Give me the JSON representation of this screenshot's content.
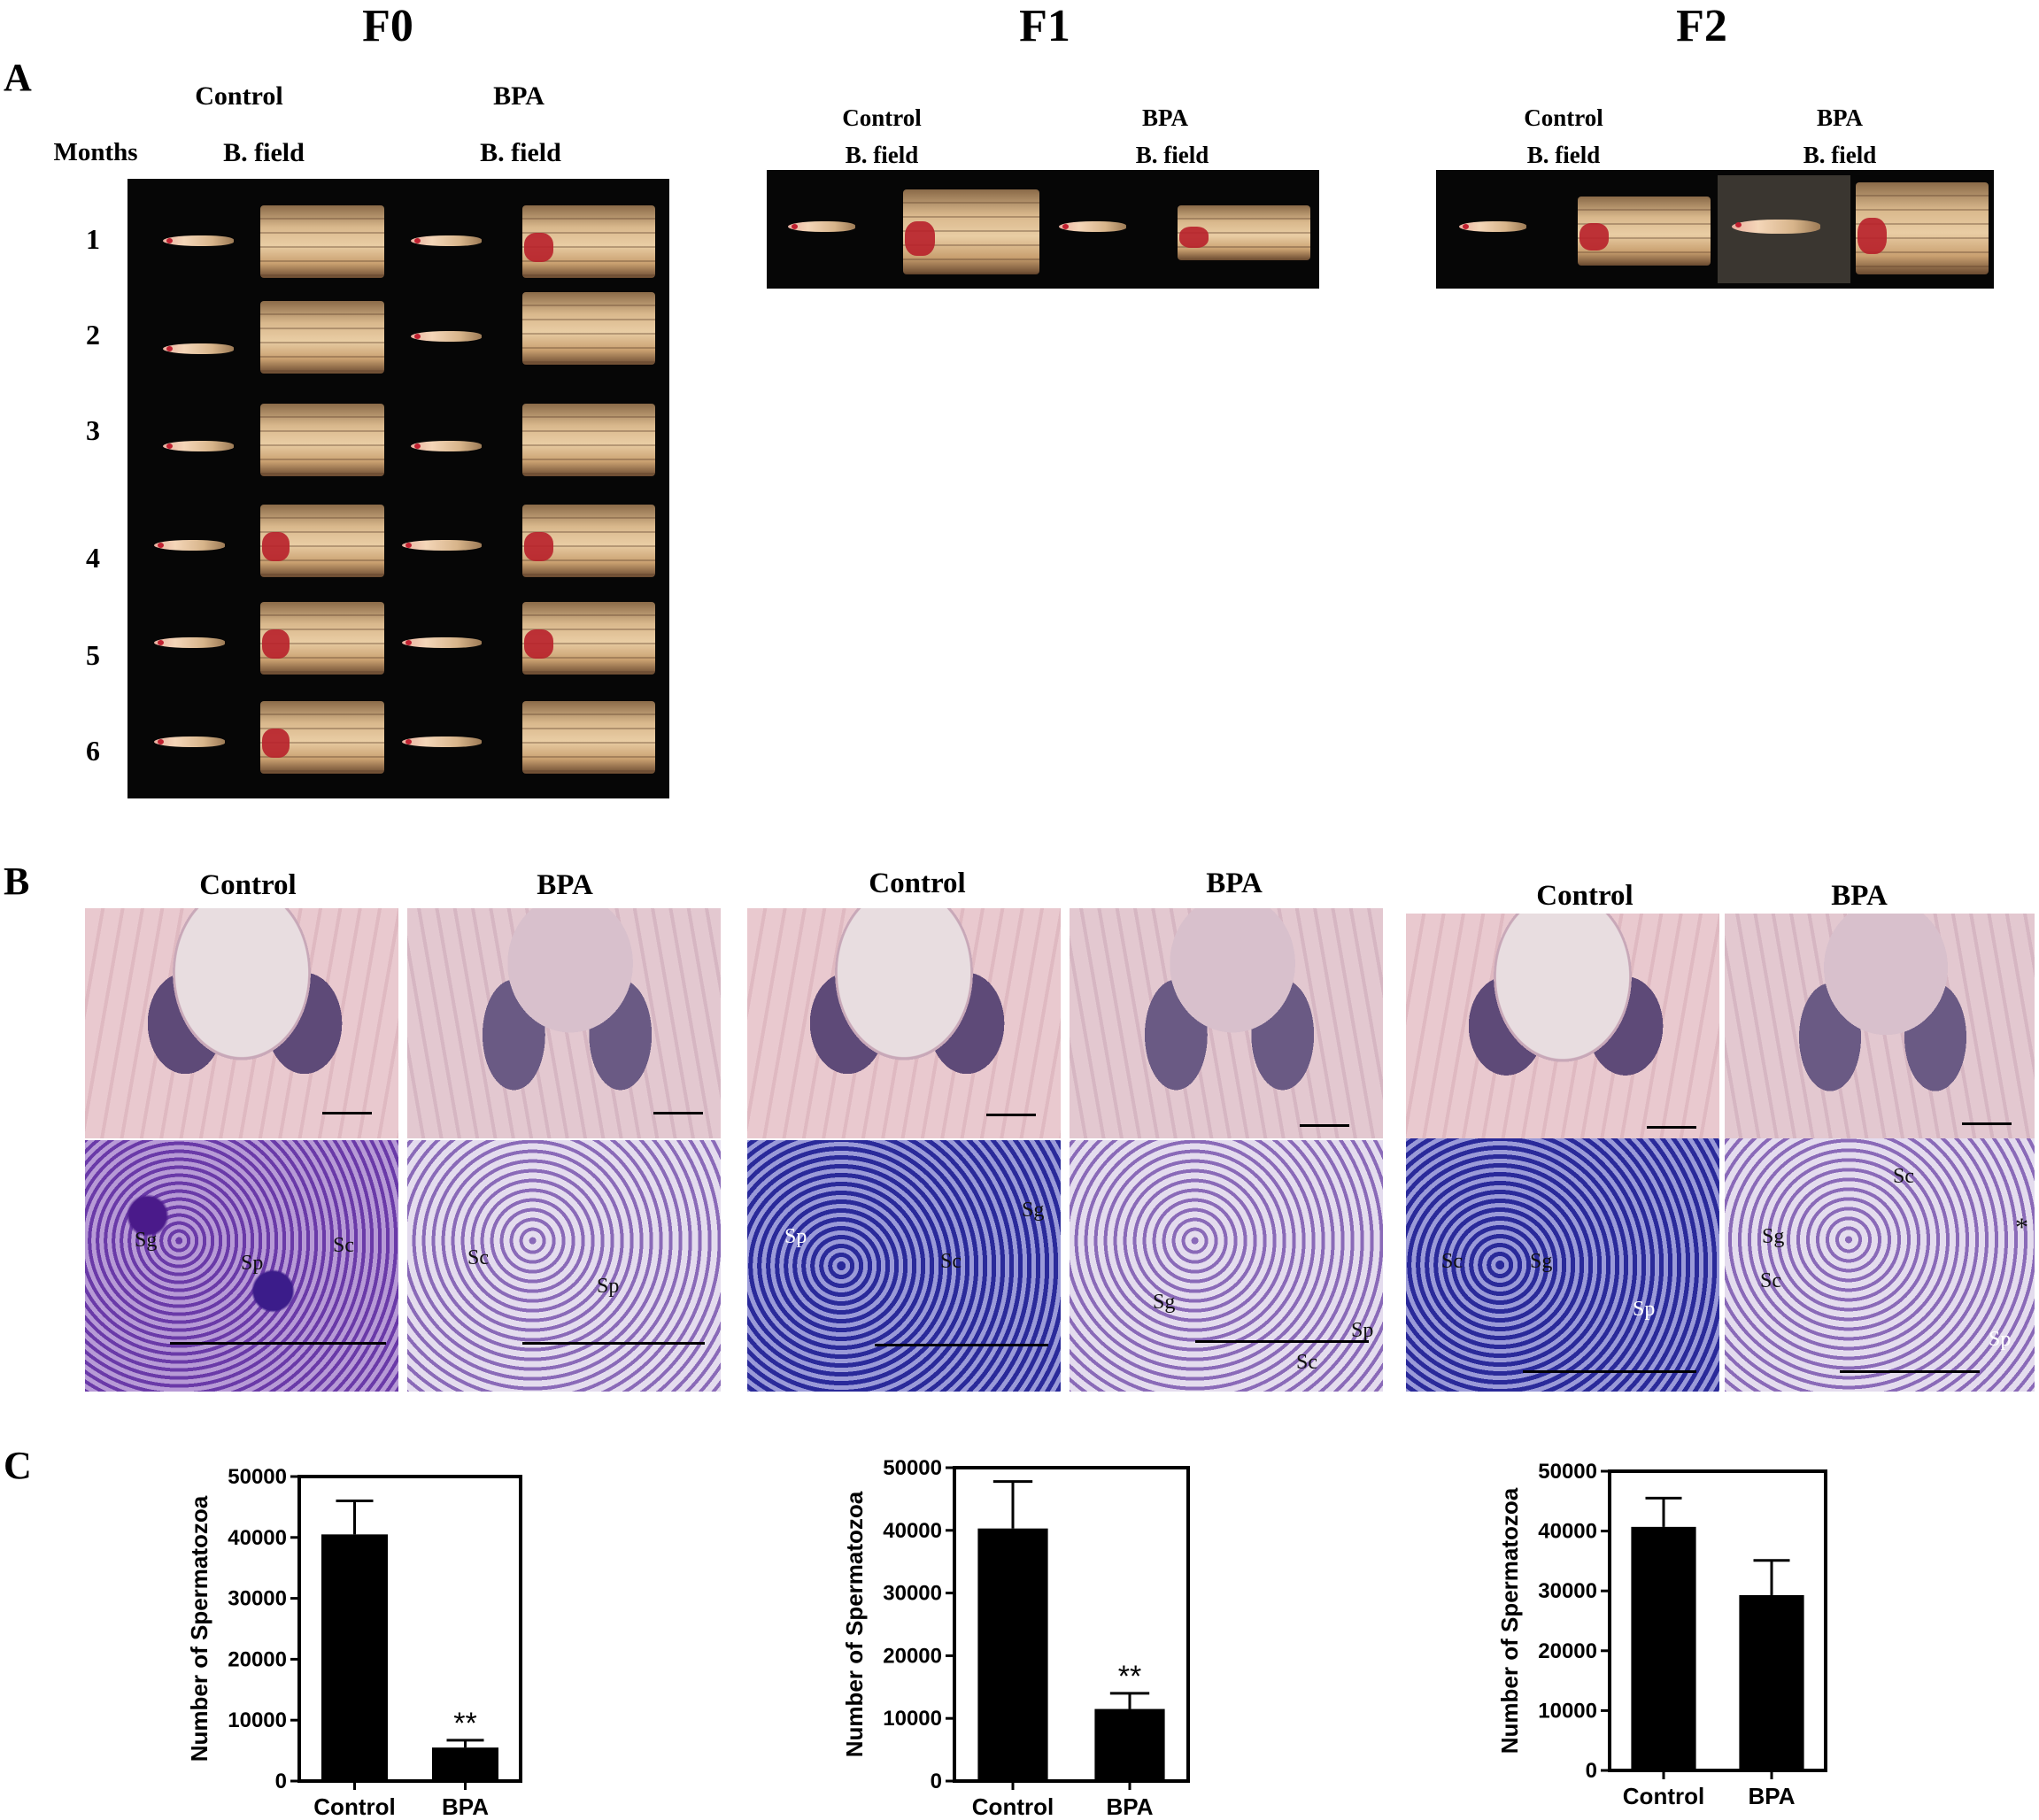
{
  "generations": [
    "F0",
    "F1",
    "F2"
  ],
  "panels": {
    "a": "A",
    "b": "B",
    "c": "C"
  },
  "panel_a": {
    "months_label": "Months",
    "months": [
      "1",
      "2",
      "3",
      "4",
      "5",
      "6"
    ],
    "group_control": "Control",
    "group_bpa": "BPA",
    "bfield": "B. field"
  },
  "panel_b": {
    "control": "Control",
    "bpa": "BPA",
    "cell_labels": {
      "sg": "Sg",
      "sp": "Sp",
      "sc": "Sc",
      "star": "*"
    }
  },
  "colors": {
    "bar": "#000000",
    "background": "#ffffff"
  },
  "chart_data": [
    {
      "type": "bar",
      "categories": [
        "Control",
        "BPA"
      ],
      "values": [
        40500,
        5500
      ],
      "errors": [
        5500,
        1200
      ],
      "annotations": [
        "",
        "**"
      ],
      "ylabel": "Number of Spermatozoa",
      "ylim": [
        0,
        50000
      ],
      "yticks": [
        "0",
        "10000",
        "20000",
        "30000",
        "40000",
        "50000"
      ]
    },
    {
      "type": "bar",
      "categories": [
        "Control",
        "BPA"
      ],
      "values": [
        40300,
        11500
      ],
      "errors": [
        7500,
        2500
      ],
      "annotations": [
        "",
        "**"
      ],
      "ylabel": "Number of Spermatozoa",
      "ylim": [
        0,
        50000
      ],
      "yticks": [
        "0",
        "10000",
        "20000",
        "30000",
        "40000",
        "50000"
      ]
    },
    {
      "type": "bar",
      "categories": [
        "Control",
        "BPA"
      ],
      "values": [
        40700,
        29300
      ],
      "errors": [
        4800,
        5800
      ],
      "annotations": [
        "",
        ""
      ],
      "ylabel": "Number of Spermatozoa",
      "ylim": [
        0,
        50000
      ],
      "yticks": [
        "0",
        "10000",
        "20000",
        "30000",
        "40000",
        "50000"
      ]
    }
  ]
}
